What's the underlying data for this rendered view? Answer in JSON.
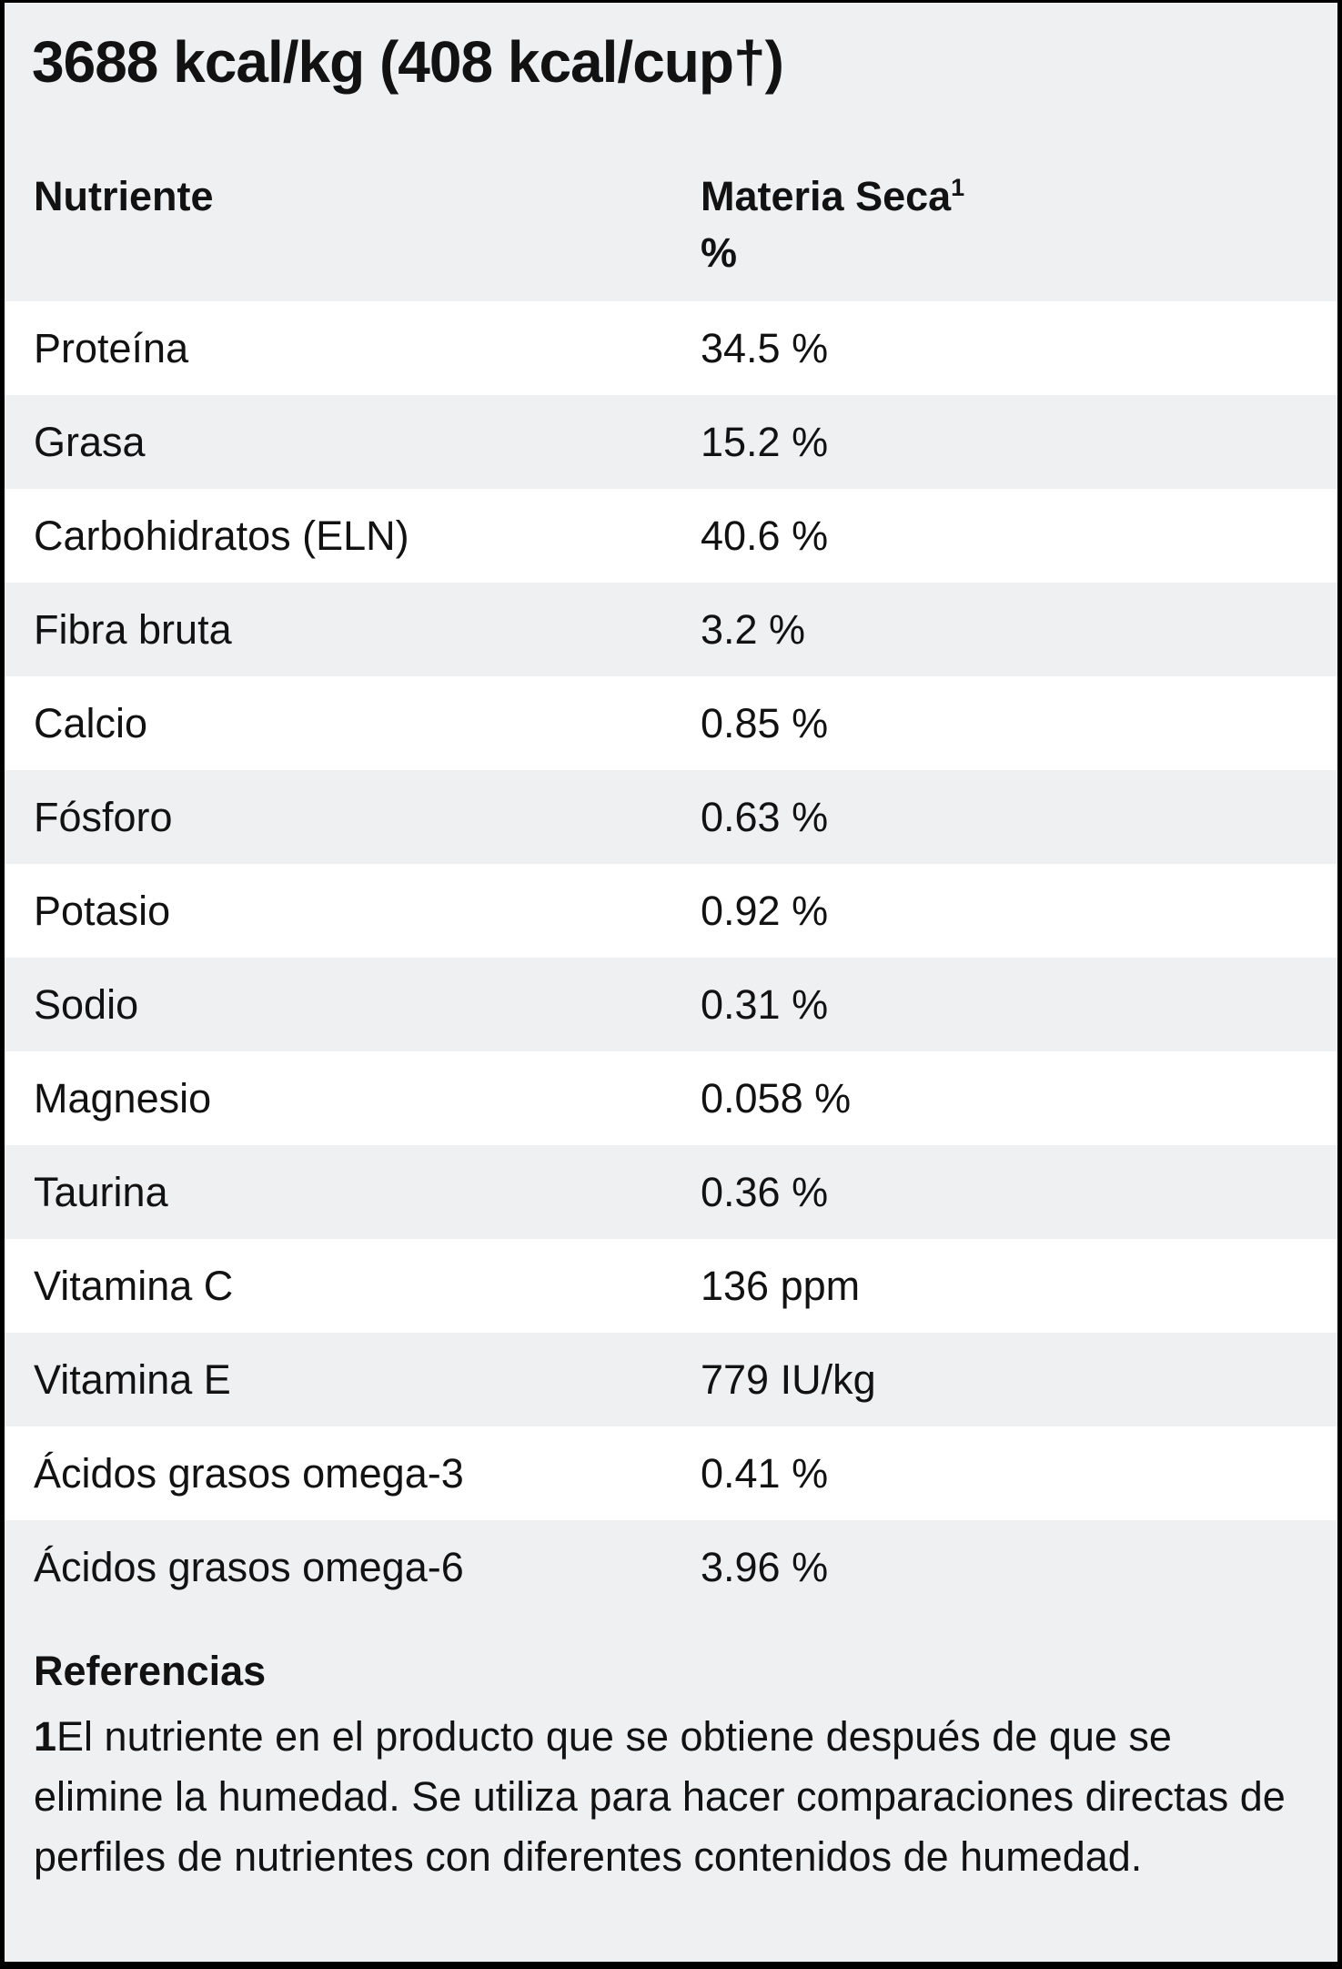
{
  "title": "3688 kcal/kg (408 kcal/cup†)",
  "table": {
    "header": {
      "col1": "Nutriente",
      "col2_name": "Materia Seca",
      "col2_sup": "1",
      "col2_unit": "%"
    },
    "rows": [
      {
        "label": "Proteína",
        "value": "34.5 %"
      },
      {
        "label": "Grasa",
        "value": "15.2 %"
      },
      {
        "label": "Carbohidratos (ELN)",
        "value": "40.6 %"
      },
      {
        "label": "Fibra bruta",
        "value": "3.2 %"
      },
      {
        "label": "Calcio",
        "value": "0.85 %"
      },
      {
        "label": "Fósforo",
        "value": "0.63 %"
      },
      {
        "label": "Potasio",
        "value": "0.92 %"
      },
      {
        "label": "Sodio",
        "value": "0.31 %"
      },
      {
        "label": "Magnesio",
        "value": "0.058 %"
      },
      {
        "label": "Taurina",
        "value": "0.36 %"
      },
      {
        "label": "Vitamina C",
        "value": "136 ppm"
      },
      {
        "label": "Vitamina E",
        "value": "779 IU/kg"
      },
      {
        "label": "Ácidos grasos omega-3",
        "value": "0.41 %"
      },
      {
        "label": "Ácidos grasos omega-6",
        "value": "3.96 %"
      }
    ]
  },
  "footer": {
    "heading": "Referencias",
    "note_ref": "1",
    "note_text": "El nutriente en el producto que se obtiene después de que se elimine la humedad. Se utiliza para hacer comparaciones directas de perfiles de nutrientes con diferentes contenidos de humedad."
  },
  "colors": {
    "background": "#eff0f2",
    "row_alt": "#ffffff",
    "border": "#000000",
    "text": "#121212"
  }
}
